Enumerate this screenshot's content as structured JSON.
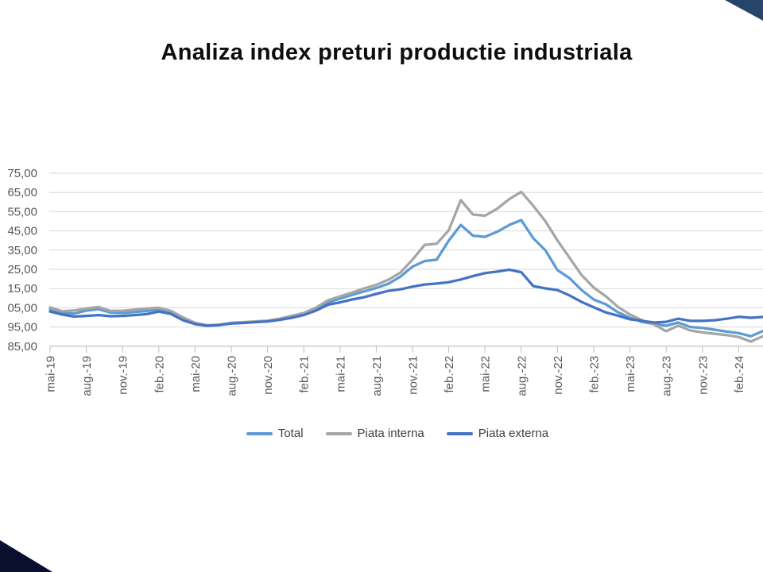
{
  "slide": {
    "title": "Analiza index preturi productie industriala",
    "background_color": "#FFFFFF",
    "decor": {
      "top_right_triangle_color": "#264569",
      "bottom_left_triangle_color": "#090F2D"
    }
  },
  "chart_data": {
    "type": "line",
    "title": "Analiza index preturi productie industriala",
    "x_interval": "monthly",
    "x_start": "mai-19",
    "x_end": "apr-24",
    "points_per_series": 60,
    "x_tick_every_n_months": 3,
    "x_tick_labels": [
      "mai-19",
      "aug.-19",
      "nov.-19",
      "feb.-20",
      "mai-20",
      "aug.-20",
      "nov.-20",
      "feb.-21",
      "mai-21",
      "aug.-21",
      "nov.-21",
      "feb.-22",
      "mai-22",
      "aug.-22",
      "nov.-22",
      "feb.-23",
      "mai-23",
      "aug.-23",
      "nov.-23",
      "feb.-24"
    ],
    "x_tick_label_rotation_deg": -90,
    "y_axis_values": [
      175,
      165,
      155,
      145,
      135,
      125,
      115,
      105,
      95,
      85
    ],
    "y_tick_labels_visible": [
      "75,00",
      "65,00",
      "55,00",
      "45,00",
      "35,00",
      "25,00",
      "15,00",
      "05,00",
      "95,00",
      "85,00"
    ],
    "ylim": [
      85,
      175
    ],
    "grid": "horizontal",
    "grid_color": "#D9D9D9",
    "axis_color": "#BFBFBF",
    "axis_label_color": "#595959",
    "legend_position": "bottom",
    "series": [
      {
        "name": "Total",
        "color": "#5B9BD5",
        "values": [
          104.3,
          102.5,
          102.0,
          103.5,
          104.3,
          102.5,
          102.3,
          102.8,
          103.3,
          104.2,
          102.5,
          99.0,
          96.8,
          95.8,
          96.1,
          97.0,
          97.3,
          97.7,
          98.1,
          99.0,
          100.3,
          101.8,
          104.3,
          107.8,
          109.8,
          111.7,
          113.5,
          115.3,
          117.5,
          121.2,
          126.4,
          129.3,
          130.0,
          139.9,
          148.1,
          142.5,
          141.9,
          144.5,
          148.0,
          150.6,
          141.1,
          134.9,
          124.6,
          120.4,
          114.2,
          109.3,
          106.8,
          102.7,
          99.8,
          97.7,
          96.5,
          95.7,
          97.3,
          95.0,
          94.5,
          93.6,
          92.6,
          91.8,
          90.2,
          92.9
        ]
      },
      {
        "name": "Piata interna",
        "color": "#A5A5A5",
        "values": [
          105.2,
          103.2,
          103.6,
          104.6,
          105.4,
          103.4,
          103.4,
          104.0,
          104.6,
          105.0,
          103.4,
          100.0,
          97.2,
          95.9,
          96.2,
          97.2,
          97.5,
          97.9,
          98.3,
          99.3,
          100.8,
          102.3,
          105.0,
          108.9,
          110.9,
          112.9,
          115.1,
          116.9,
          119.6,
          123.3,
          130.0,
          137.7,
          138.3,
          145.3,
          161.0,
          153.5,
          152.9,
          156.5,
          161.5,
          165.3,
          158.0,
          150.0,
          140.0,
          131.0,
          122.0,
          115.5,
          111.0,
          105.5,
          101.5,
          98.5,
          96.3,
          92.8,
          95.7,
          93.2,
          92.2,
          91.5,
          90.8,
          89.8,
          87.4,
          90.2
        ]
      },
      {
        "name": "Piata externa",
        "color": "#4472C4",
        "values": [
          103.0,
          101.5,
          100.4,
          100.8,
          101.2,
          100.6,
          100.8,
          101.2,
          101.7,
          103.0,
          101.8,
          98.5,
          96.5,
          95.6,
          96.0,
          96.8,
          97.1,
          97.5,
          97.9,
          98.7,
          99.8,
          101.2,
          103.5,
          106.6,
          107.8,
          109.3,
          110.5,
          112.2,
          113.8,
          114.6,
          116.0,
          117.1,
          117.6,
          118.3,
          119.7,
          121.5,
          123.0,
          123.8,
          124.8,
          123.5,
          116.3,
          115.1,
          114.2,
          111.4,
          108.0,
          105.3,
          102.6,
          100.9,
          99.0,
          98.2,
          97.3,
          97.7,
          99.3,
          98.2,
          98.2,
          98.5,
          99.3,
          100.3,
          99.8,
          100.2
        ]
      }
    ]
  }
}
